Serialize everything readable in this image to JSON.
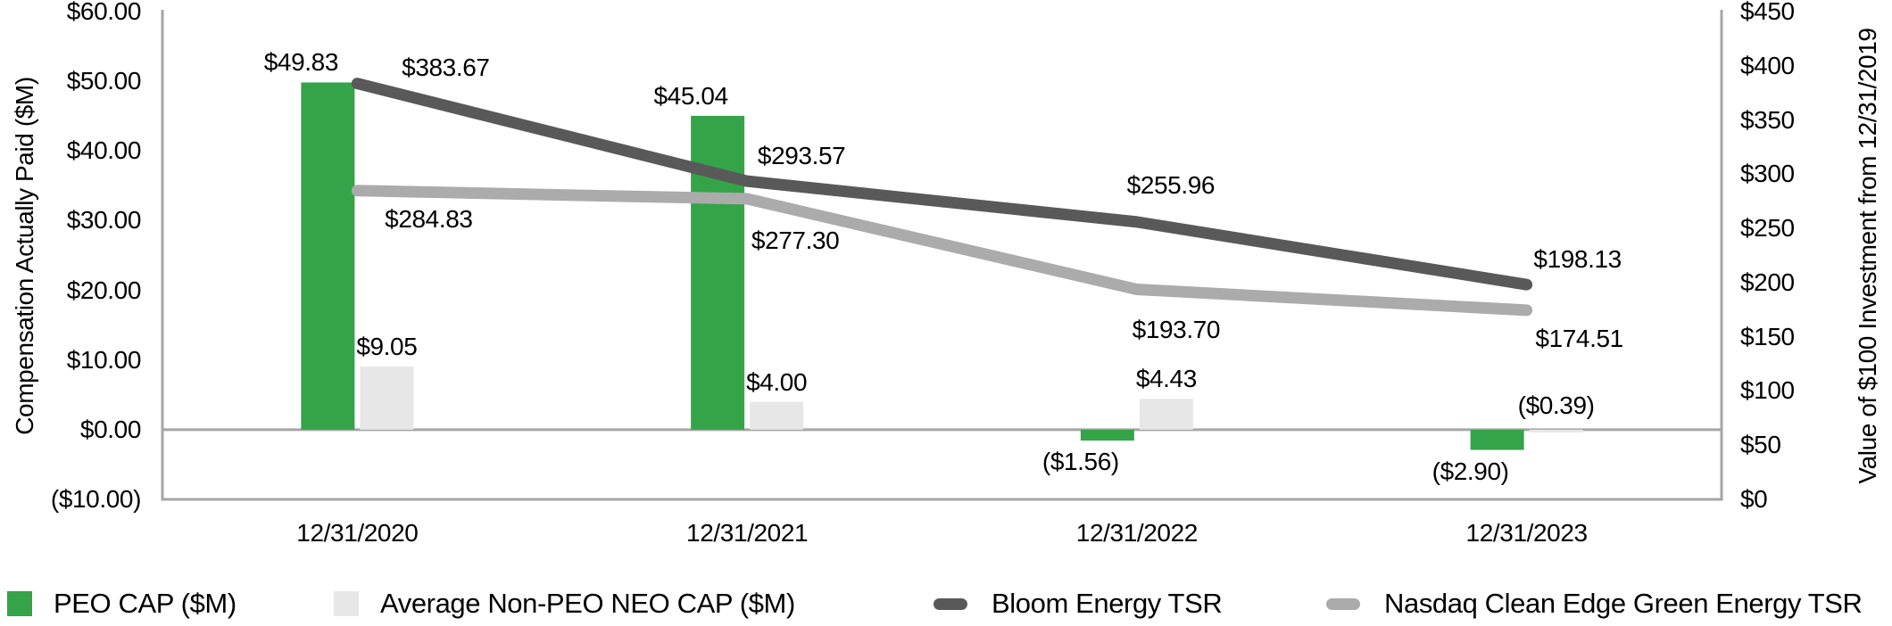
{
  "chart_data": {
    "type": "bar+line combo",
    "categories": [
      "12/31/2020",
      "12/31/2021",
      "12/31/2022",
      "12/31/2023"
    ],
    "bar_series": [
      {
        "name": "PEO CAP ($M)",
        "color": "#35A449",
        "axis": "left",
        "values": [
          49.83,
          45.04,
          -1.56,
          -2.9
        ],
        "labels": [
          "$49.83",
          "$45.04",
          "($1.56)",
          "($2.90)"
        ]
      },
      {
        "name": "Average Non-PEO NEO CAP ($M)",
        "color": "#E7E7E7",
        "axis": "left",
        "values": [
          9.05,
          4.0,
          4.43,
          -0.39
        ],
        "labels": [
          "$9.05",
          "$4.00",
          "$4.43",
          "($0.39)"
        ]
      }
    ],
    "line_series": [
      {
        "name": "Bloom Energy TSR",
        "color": "#595959",
        "axis": "right",
        "values": [
          383.67,
          293.57,
          255.96,
          198.13
        ],
        "labels": [
          "$383.67",
          "$293.57",
          "$255.96",
          "$198.13"
        ]
      },
      {
        "name": "Nasdaq Clean Edge Green Energy TSR",
        "color": "#ABABAB",
        "axis": "right",
        "values": [
          284.83,
          277.3,
          193.7,
          174.51
        ],
        "labels": [
          "$284.83",
          "$277.30",
          "$193.70",
          "$174.51"
        ]
      }
    ],
    "left_axis": {
      "title": "Compensation Actually Paid ($M)",
      "min": -10,
      "max": 60,
      "tick_step": 10,
      "tick_labels": [
        "$60.00",
        "$50.00",
        "$40.00",
        "$30.00",
        "$20.00",
        "$10.00",
        "$0.00",
        "($10.00)"
      ]
    },
    "right_axis": {
      "title": "Value of $100 Investment from 12/31/2019",
      "min": 0,
      "max": 450,
      "tick_step": 50,
      "tick_labels": [
        "$450",
        "$400",
        "$350",
        "$300",
        "$250",
        "$200",
        "$150",
        "$100",
        "$50",
        "$0"
      ]
    },
    "grid": false,
    "legend_position": "bottom"
  },
  "colors": {
    "axis_line": "#A6A6A6",
    "text": "#000000",
    "background": "#FFFFFF",
    "peo_cap": "#35A449",
    "non_peo_cap": "#E7E7E7",
    "bloom_tsr": "#595959",
    "nasdaq_tsr": "#ABABAB"
  }
}
